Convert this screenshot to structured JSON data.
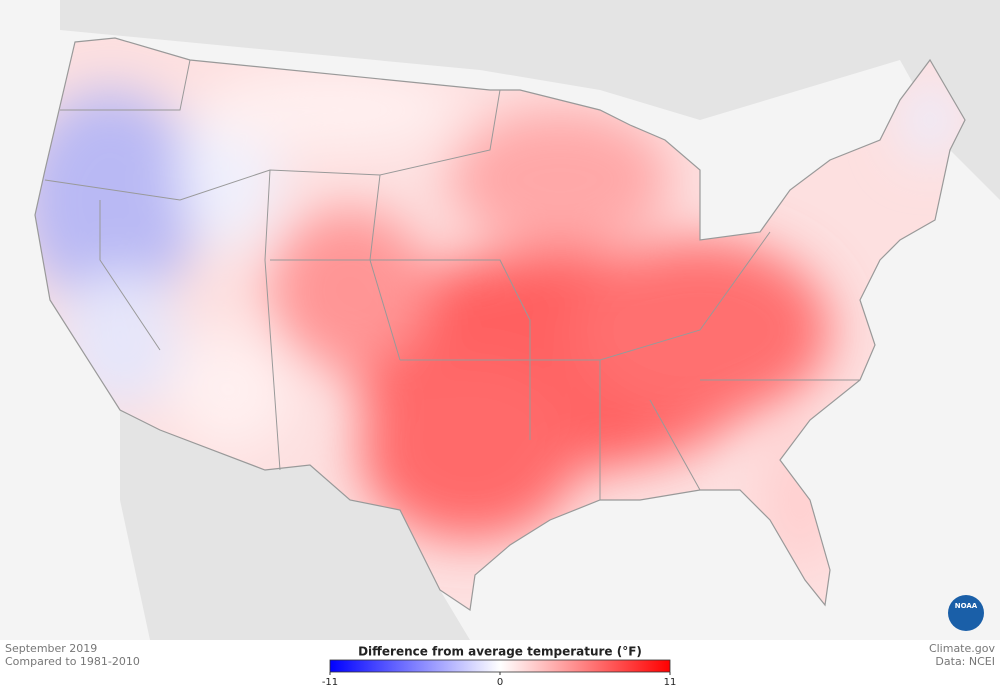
{
  "footer": {
    "date": "September 2019",
    "baseline": "Compared to 1981-2010",
    "site": "Climate.gov",
    "source": "Data: NCEI"
  },
  "legend": {
    "title": "Difference from average temperature (°F)",
    "ticks": [
      -11,
      0,
      11
    ],
    "colors": [
      "#0000ff",
      "#ffffff",
      "#ff0000"
    ]
  },
  "logo": "NOAA"
}
